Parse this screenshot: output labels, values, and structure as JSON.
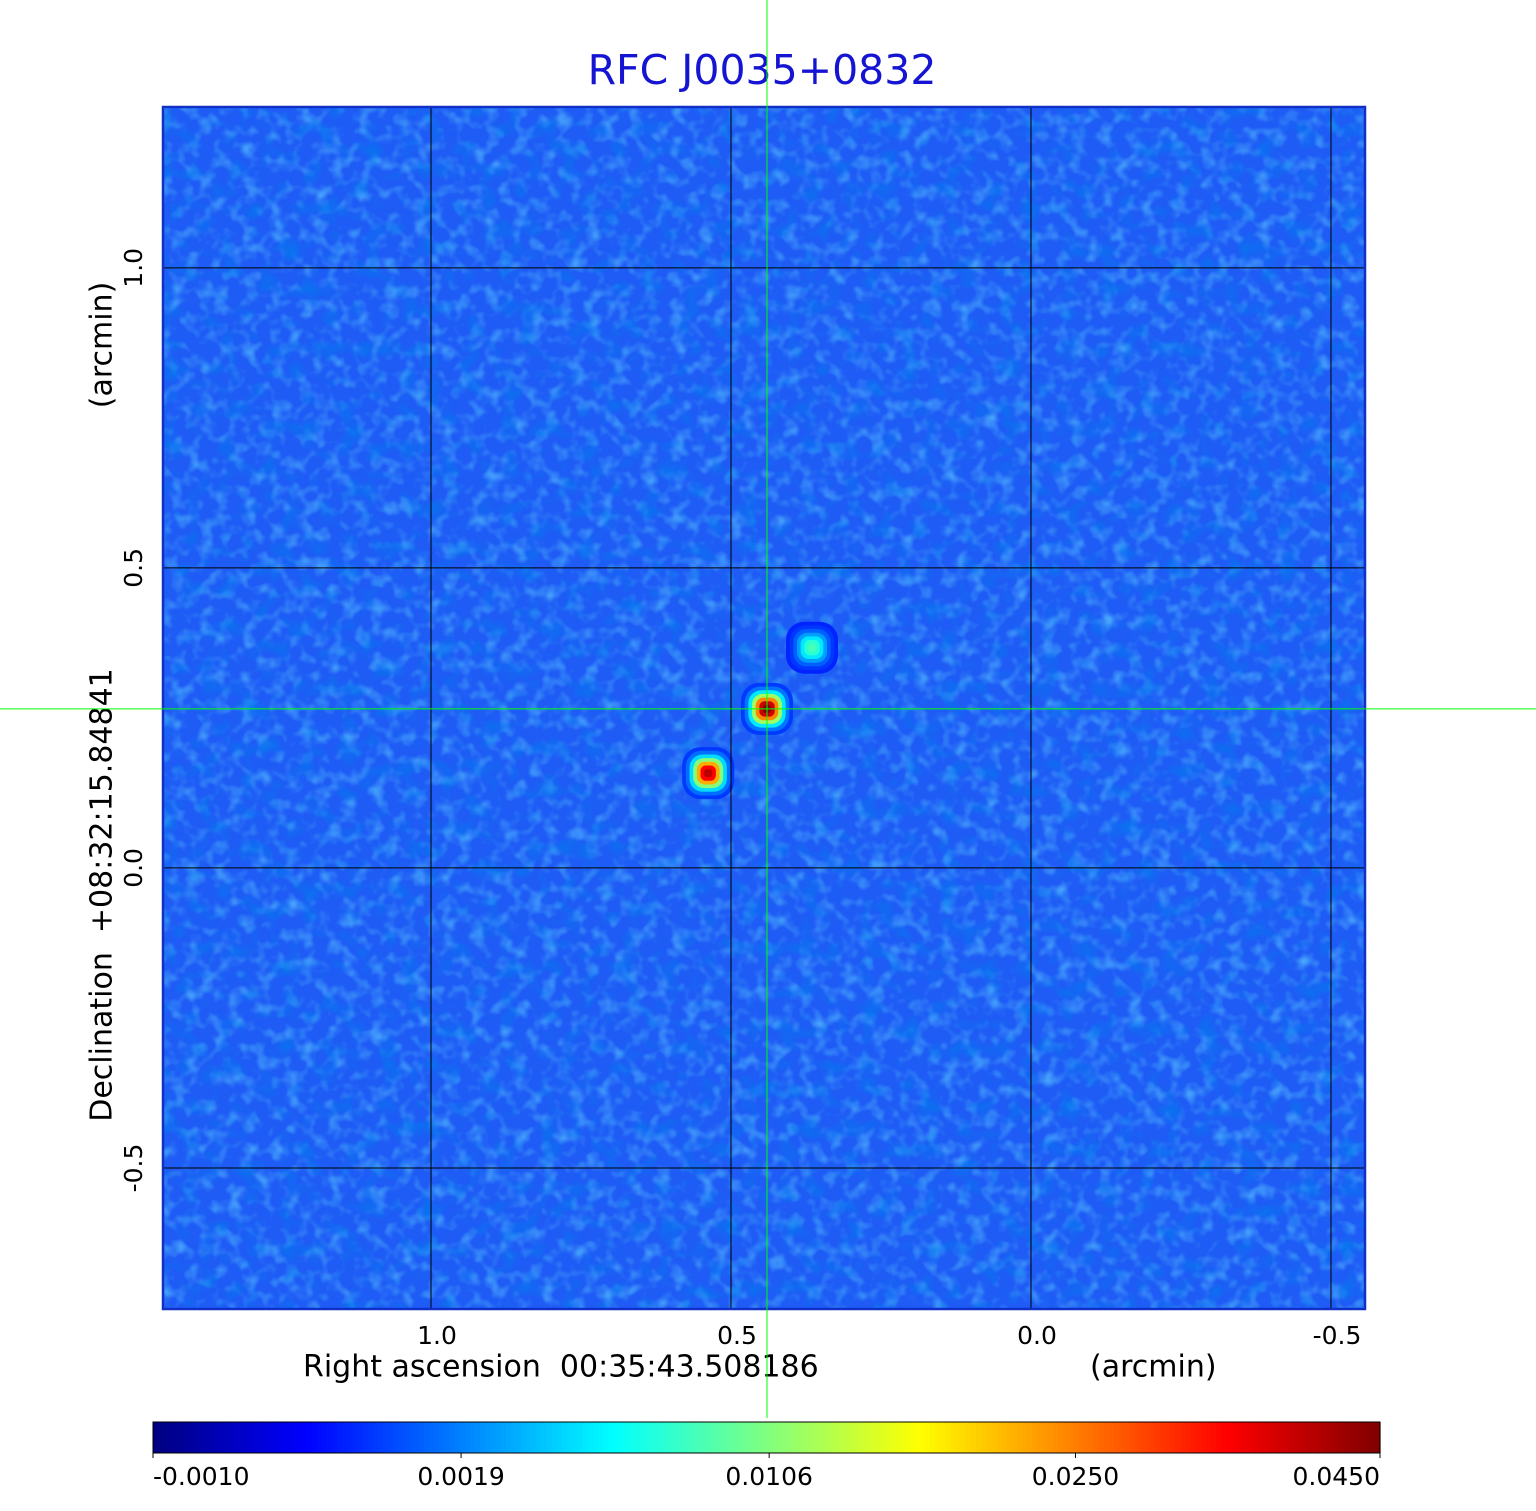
{
  "chart_data": {
    "type": "image",
    "title": "RFC J0035+0832",
    "xlabel": "Right ascension  00:35:43.508186",
    "xunit": "(arcmin)",
    "ylabel": "Declination  +08:32:15.84841",
    "yunit": "(arcmin)",
    "xlim": [
      1.4467,
      -0.5567
    ],
    "ylim": [
      -0.735,
      1.268
    ],
    "xticks": [
      {
        "value": 1,
        "label": "1.0"
      },
      0.5,
      {
        "value": 0,
        "label": "0.0"
      },
      -0.5
    ],
    "yticks": [
      {
        "value": 1,
        "label": "1.0"
      },
      0.5,
      {
        "value": 0,
        "label": "0.0"
      },
      -0.5
    ],
    "grid": true,
    "colormap": "jet",
    "crosshair": {
      "x": 0.44,
      "y": 0.265,
      "color": "#00ff00"
    },
    "sources": {
      "x": [
        0.44,
        0.538,
        0.365
      ],
      "y": [
        0.265,
        0.158,
        0.367
      ],
      "values": [
        0.045,
        0.04,
        0.008
      ]
    },
    "colorbar": {
      "lim": [
        -0.001,
        0.045
      ],
      "scale": "sqrt",
      "ticks": [
        {
          "value": -0.001,
          "label": "-0.0010"
        },
        {
          "value": 0.0019,
          "label": "0.0019"
        },
        {
          "value": 0.0106,
          "label": "0.0106"
        },
        {
          "value": 0.025,
          "label": "0.0250"
        },
        {
          "value": 0.045,
          "label": "0.0450"
        }
      ]
    }
  }
}
